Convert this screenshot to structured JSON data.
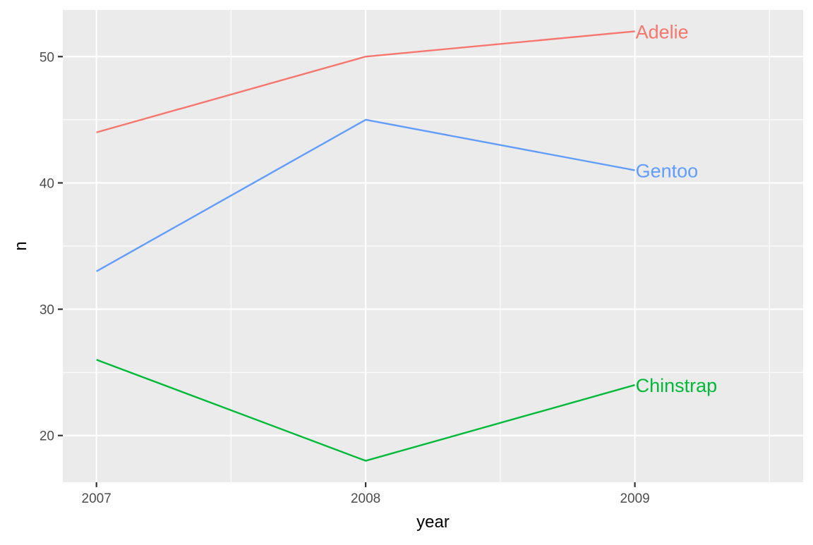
{
  "chart_data": {
    "type": "line",
    "title": "",
    "xlabel": "year",
    "ylabel": "n",
    "x": [
      2007,
      2008,
      2009
    ],
    "x_ticks": [
      "2007",
      "2008",
      "2009"
    ],
    "y_ticks": [
      "20",
      "30",
      "40",
      "50"
    ],
    "xlim": [
      2006.875,
      2009.625
    ],
    "ylim": [
      16.3,
      53.7
    ],
    "grid": true,
    "legend": "direct labels at line ends",
    "background_color": "#EBEBEB",
    "grid_color": "#FFFFFF",
    "series": [
      {
        "name": "Adelie",
        "values": [
          44,
          50,
          52
        ],
        "color": "#F8766D"
      },
      {
        "name": "Gentoo",
        "values": [
          33,
          45,
          41
        ],
        "color": "#619CFF"
      },
      {
        "name": "Chinstrap",
        "values": [
          26,
          18,
          24
        ],
        "color": "#00BA38"
      }
    ]
  }
}
